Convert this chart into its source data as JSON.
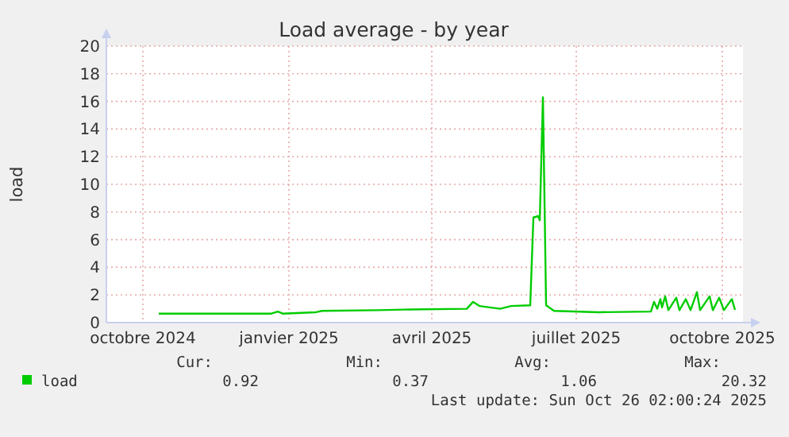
{
  "chart_data": {
    "type": "line",
    "title": "Load average - by year",
    "ylabel": "load",
    "xlim": [
      "2024-09-23",
      "2025-10-29"
    ],
    "xticks": [
      {
        "value": "2024-10-16",
        "label": "octobre 2024"
      },
      {
        "value": "2025-01-16",
        "label": "janvier 2025"
      },
      {
        "value": "2025-04-16",
        "label": "avril 2025"
      },
      {
        "value": "2025-07-16",
        "label": "juillet 2025"
      },
      {
        "value": "2025-10-16",
        "label": "octobre 2025"
      }
    ],
    "ylim": [
      0,
      20
    ],
    "yticks": [
      0,
      2,
      4,
      6,
      8,
      10,
      12,
      14,
      16,
      18,
      20
    ],
    "grid": true,
    "legend": "bottom",
    "marker": "none",
    "line_style": "solid",
    "x": [
      "2024-10-26",
      "2024-12-01",
      "2025-01-05",
      "2025-01-09",
      "2025-01-12",
      "2025-02-02",
      "2025-02-06",
      "2025-03-13",
      "2025-04-02",
      "2025-05-08",
      "2025-05-12",
      "2025-05-16",
      "2025-05-29",
      "2025-06-05",
      "2025-06-17",
      "2025-06-19",
      "2025-06-22",
      "2025-06-23",
      "2025-06-25",
      "2025-06-27",
      "2025-07-02",
      "2025-07-30",
      "2025-09-01",
      "2025-09-03",
      "2025-09-05",
      "2025-09-07",
      "2025-09-08",
      "2025-09-10",
      "2025-09-12",
      "2025-09-17",
      "2025-09-19",
      "2025-09-23",
      "2025-09-26",
      "2025-09-30",
      "2025-10-02",
      "2025-10-08",
      "2025-10-10",
      "2025-10-14",
      "2025-10-17",
      "2025-10-22",
      "2025-10-24"
    ],
    "series": [
      {
        "name": "load",
        "color": "#00cc00",
        "values": [
          0.65,
          0.65,
          0.65,
          0.8,
          0.65,
          0.75,
          0.85,
          0.9,
          0.95,
          1.0,
          1.5,
          1.2,
          1.0,
          1.2,
          1.25,
          7.6,
          7.7,
          7.4,
          16.3,
          1.25,
          0.85,
          0.75,
          0.8,
          1.5,
          1.0,
          1.7,
          1.1,
          1.9,
          0.9,
          1.8,
          0.9,
          1.7,
          0.9,
          2.2,
          0.9,
          1.9,
          0.9,
          1.8,
          0.9,
          1.7,
          0.92
        ]
      }
    ],
    "annotations": [
      "Cur:",
      "Min:",
      "Avg:",
      "Max:",
      "0.92",
      "0.37",
      "1.06",
      "20.32",
      "Last update: Sun Oct 26 02:00:24 2025"
    ]
  }
}
